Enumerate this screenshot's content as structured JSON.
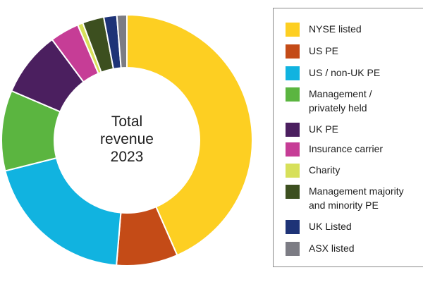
{
  "chart_data": {
    "type": "pie",
    "variant": "donut",
    "center_label": [
      "Total",
      "revenue",
      "2023"
    ],
    "legend_position": "right",
    "slices": [
      {
        "label": "NYSE listed",
        "value": 44.0,
        "color": "#fdcf22"
      },
      {
        "label": "US PE",
        "value": 8.0,
        "color": "#c44b17"
      },
      {
        "label": "US / non-UK PE",
        "value": 20.0,
        "color": "#11b3e0"
      },
      {
        "label": "Management /\nprivately held",
        "value": 10.5,
        "color": "#5bb540"
      },
      {
        "label": "UK PE",
        "value": 8.5,
        "color": "#4b1f5f"
      },
      {
        "label": "Insurance carrier",
        "value": 3.8,
        "color": "#c63d96"
      },
      {
        "label": "Charity",
        "value": 0.7,
        "color": "#d7e05a"
      },
      {
        "label": "Management majority\nand minority PE",
        "value": 2.8,
        "color": "#3c4f1f"
      },
      {
        "label": "UK Listed",
        "value": 1.7,
        "color": "#1e3377"
      },
      {
        "label": "ASX listed",
        "value": 1.3,
        "color": "#7c7c84"
      }
    ]
  }
}
